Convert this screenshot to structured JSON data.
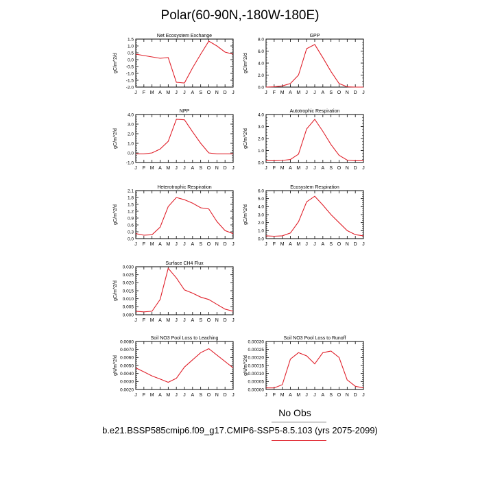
{
  "figure": {
    "title": "Polar(60-90N,-180W-180E)",
    "legend_obs": "No Obs",
    "legend_model": "b.e21.BSSP585cmip6.f09_g17.CMIP6-SSP5-8.5.103 (yrs 2075-2099)",
    "line_color": "#e0202a",
    "obs_color": "#777777"
  },
  "chart_data": [
    {
      "type": "line",
      "title": "Net Ecosystem Exchange",
      "ylabel": "gC/m^2/d",
      "categories": [
        "J",
        "F",
        "M",
        "A",
        "M",
        "J",
        "J",
        "A",
        "S",
        "O",
        "N",
        "D",
        "J"
      ],
      "ylim": [
        -2.0,
        1.5
      ],
      "yticks": [
        "1.5",
        "1.0",
        "0.5",
        "0.0",
        "-0.5",
        "-1.0",
        "-1.5",
        "-2.0"
      ],
      "values": [
        0.4,
        0.3,
        0.2,
        0.1,
        0.15,
        -1.65,
        -1.7,
        -0.6,
        0.4,
        1.35,
        1.0,
        0.55,
        0.4
      ]
    },
    {
      "type": "line",
      "title": "GPP",
      "ylabel": "gC/m^2/d",
      "categories": [
        "J",
        "F",
        "M",
        "A",
        "M",
        "J",
        "J",
        "A",
        "S",
        "O",
        "N",
        "D",
        "J"
      ],
      "ylim": [
        0,
        8.0
      ],
      "yticks": [
        "8.0",
        "6.0",
        "4.0",
        "2.0",
        "0.0"
      ],
      "values": [
        0.0,
        0.05,
        0.2,
        0.6,
        2.0,
        6.4,
        7.1,
        4.9,
        2.6,
        0.6,
        0.05,
        0.0,
        0.0
      ]
    },
    {
      "type": "line",
      "title": "NPP",
      "ylabel": "gC/m^2/d",
      "categories": [
        "J",
        "F",
        "M",
        "A",
        "M",
        "J",
        "J",
        "A",
        "S",
        "O",
        "N",
        "D",
        "J"
      ],
      "ylim": [
        -1.0,
        4.0
      ],
      "yticks": [
        "4.0",
        "3.0",
        "2.0",
        "1.0",
        "0.0",
        "-1.0"
      ],
      "values": [
        -0.1,
        -0.1,
        0.0,
        0.4,
        1.2,
        3.5,
        3.45,
        2.2,
        1.0,
        0.0,
        -0.1,
        -0.1,
        -0.1
      ]
    },
    {
      "type": "line",
      "title": "Autotrophic Respiration",
      "ylabel": "gC/m^2/d",
      "categories": [
        "J",
        "F",
        "M",
        "A",
        "M",
        "J",
        "J",
        "A",
        "S",
        "O",
        "N",
        "D",
        "J"
      ],
      "ylim": [
        0,
        4.0
      ],
      "yticks": [
        "4.0",
        "3.0",
        "2.0",
        "1.0",
        "0.0"
      ],
      "values": [
        0.15,
        0.15,
        0.17,
        0.25,
        0.7,
        2.8,
        3.6,
        2.6,
        1.5,
        0.6,
        0.2,
        0.15,
        0.15
      ]
    },
    {
      "type": "line",
      "title": "Heterotrophic Respiration",
      "ylabel": "gC/m^2/d",
      "categories": [
        "J",
        "F",
        "M",
        "A",
        "M",
        "J",
        "J",
        "A",
        "S",
        "O",
        "N",
        "D",
        "J"
      ],
      "ylim": [
        0,
        2.1
      ],
      "yticks": [
        "2.1",
        "1.8",
        "1.5",
        "1.2",
        "0.9",
        "0.6",
        "0.3",
        "0.0"
      ],
      "values": [
        0.22,
        0.15,
        0.17,
        0.5,
        1.4,
        1.8,
        1.7,
        1.55,
        1.35,
        1.3,
        0.75,
        0.35,
        0.22
      ]
    },
    {
      "type": "line",
      "title": "Ecosystem Respiration",
      "ylabel": "gC/m^2/d",
      "categories": [
        "J",
        "F",
        "M",
        "A",
        "M",
        "J",
        "J",
        "A",
        "S",
        "O",
        "N",
        "D",
        "J"
      ],
      "ylim": [
        0,
        6.0
      ],
      "yticks": [
        "6.0",
        "5.0",
        "4.0",
        "3.0",
        "2.0",
        "1.0",
        "0.0"
      ],
      "values": [
        0.35,
        0.3,
        0.35,
        0.7,
        2.1,
        4.6,
        5.3,
        4.2,
        3.0,
        2.0,
        1.0,
        0.5,
        0.35
      ]
    },
    {
      "type": "line",
      "title": "Surface CH4 Flux",
      "ylabel": "gC/m^2/d",
      "categories": [
        "J",
        "F",
        "M",
        "A",
        "M",
        "J",
        "J",
        "A",
        "S",
        "O",
        "N",
        "D",
        "J"
      ],
      "ylim": [
        0,
        0.03
      ],
      "yticks": [
        "0.030",
        "0.025",
        "0.020",
        "0.015",
        "0.010",
        "0.005",
        "0.000"
      ],
      "values": [
        0.0022,
        0.0018,
        0.0022,
        0.0095,
        0.029,
        0.023,
        0.0155,
        0.0135,
        0.011,
        0.0095,
        0.0065,
        0.0035,
        0.0022
      ]
    },
    {
      "type": "line",
      "title": "Soil NO3 Pool Loss to Leaching",
      "ylabel": "gN/m^2/d",
      "categories": [
        "J",
        "F",
        "M",
        "A",
        "M",
        "J",
        "J",
        "A",
        "S",
        "O",
        "N",
        "D",
        "J"
      ],
      "ylim": [
        0.002,
        0.008
      ],
      "yticks": [
        "0.0080",
        "0.0070",
        "0.0060",
        "0.0050",
        "0.0040",
        "0.0030",
        "0.0020"
      ],
      "values": [
        0.0047,
        0.0042,
        0.0037,
        0.0033,
        0.0029,
        0.0034,
        0.0048,
        0.0057,
        0.0066,
        0.0071,
        0.0063,
        0.0055,
        0.0047
      ]
    },
    {
      "type": "line",
      "title": "Soil NO3 Pool Loss to Runoff",
      "ylabel": "gN/m^2/d",
      "categories": [
        "J",
        "F",
        "M",
        "A",
        "M",
        "J",
        "J",
        "A",
        "S",
        "O",
        "N",
        "D",
        "J"
      ],
      "ylim": [
        0,
        0.0003
      ],
      "yticks": [
        "0.00030",
        "0.00025",
        "0.00020",
        "0.00015",
        "0.00010",
        "0.00005",
        "0.00000"
      ],
      "values": [
        1e-05,
        1e-05,
        3e-05,
        0.00019,
        0.00023,
        0.00021,
        0.00016,
        0.00023,
        0.00024,
        0.0002,
        6e-05,
        2e-05,
        1e-05
      ]
    }
  ]
}
